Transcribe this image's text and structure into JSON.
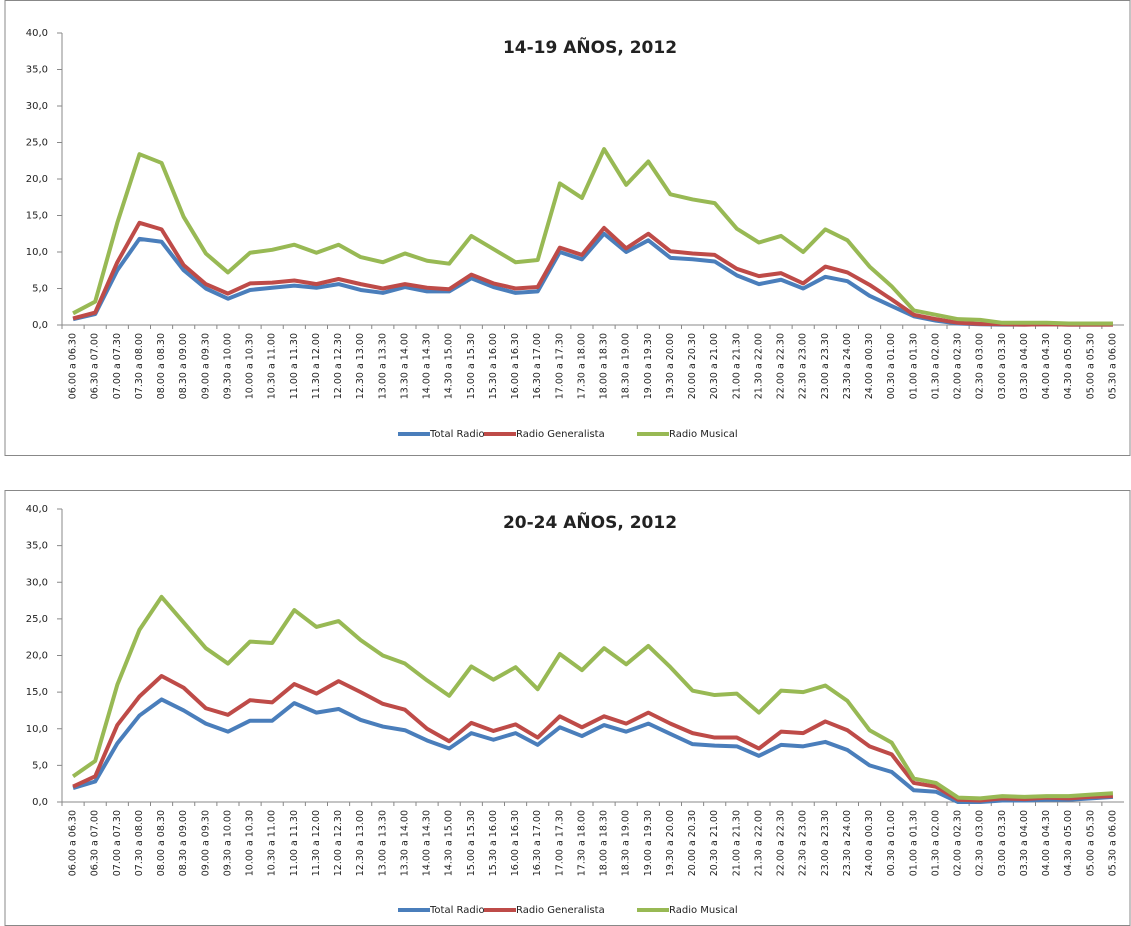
{
  "chart_data": [
    {
      "type": "line",
      "title": "14-19 AÑOS, 2012",
      "categories": [
        "06.00 a 06.30",
        "06.30 a 07.00",
        "07.00 a 07.30",
        "07.30 a 08.00",
        "08.00 a 08.30",
        "08.30 a 09.00",
        "09.00 a 09.30",
        "09.30 a 10.00",
        "10.00 a 10.30",
        "10.30 a 11.00",
        "11.00 a 11.30",
        "11.30 a 12.00",
        "12.00 a 12.30",
        "12.30 a 13.00",
        "13.00 a 13.30",
        "13.30 a 14.00",
        "14.00 a 14.30",
        "14.30 a 15.00",
        "15.00 a 15.30",
        "15.30 a 16.00",
        "16.00 a 16.30",
        "16.30 a 17.00",
        "17.00 a 17.30",
        "17.30 a 18.00",
        "18.00 a 18.30",
        "18.30 a 19.00",
        "19.00 a 19.30",
        "19.30 a 20.00",
        "20.00 a 20.30",
        "20.30 a 21.00",
        "21.00 a 21.30",
        "21.30 a 22.00",
        "22.00 a 22.30",
        "22.30 a 23.00",
        "23.00 a 23.30",
        "23.30 a 24.00",
        "24.00 a 00.30",
        "00.30 a 01.00",
        "01.00 a 01.30",
        "01.30 a 02.00",
        "02.00 a 02.30",
        "02.30 a 03.00",
        "03.00 a 03.30",
        "03.30 a 04.00",
        "04.00 a 04.30",
        "04.30 a 05.00",
        "05.00 a 05.30",
        "05.30 a 06.00"
      ],
      "series": [
        {
          "name": "Total Radio",
          "color": "#4a7ebb",
          "values": [
            0.8,
            1.5,
            7.5,
            11.8,
            11.4,
            7.5,
            5,
            3.6,
            4.8,
            5.1,
            5.4,
            5.1,
            5.6,
            4.8,
            4.4,
            5.2,
            4.6,
            4.6,
            6.4,
            5.2,
            4.4,
            4.6,
            10,
            9,
            12.5,
            10,
            11.6,
            9.2,
            9,
            8.7,
            6.8,
            5.6,
            6.2,
            5,
            6.6,
            6,
            4,
            2.6,
            1.2,
            0.6,
            0.2,
            0.1,
            0.05,
            0.05,
            0.1,
            0.05,
            0.05,
            0.05
          ]
        },
        {
          "name": "Radio Generalista",
          "color": "#be4b48",
          "values": [
            0.9,
            1.7,
            8.6,
            14,
            13.1,
            8.2,
            5.6,
            4.3,
            5.7,
            5.8,
            6.1,
            5.6,
            6.3,
            5.6,
            5,
            5.6,
            5.1,
            4.9,
            6.9,
            5.7,
            5,
            5.2,
            10.6,
            9.6,
            13.3,
            10.5,
            12.5,
            10.1,
            9.8,
            9.6,
            7.7,
            6.7,
            7.1,
            5.7,
            8,
            7.2,
            5.5,
            3.5,
            1.4,
            0.8,
            0.3,
            0.15,
            0.1,
            0.05,
            0.1,
            0.05,
            0.05,
            0.05
          ]
        },
        {
          "name": "Radio Musical",
          "color": "#98b954",
          "values": [
            1.6,
            3.2,
            14,
            23.4,
            22.2,
            14.8,
            9.8,
            7.2,
            9.9,
            10.3,
            11,
            9.9,
            11,
            9.3,
            8.6,
            9.8,
            8.8,
            8.4,
            12.2,
            10.4,
            8.6,
            8.9,
            19.4,
            17.4,
            24.1,
            19.2,
            22.4,
            17.9,
            17.2,
            16.7,
            13.2,
            11.3,
            12.2,
            10,
            13.1,
            11.6,
            8,
            5.3,
            2,
            1.4,
            0.8,
            0.7,
            0.3,
            0.3,
            0.3,
            0.2,
            0.2,
            0.2
          ]
        }
      ],
      "ylim": [
        0,
        40
      ],
      "yticks": [
        {
          "value": 0,
          "label": "0,0"
        },
        {
          "value": 5,
          "label": "5,0"
        },
        {
          "value": 10,
          "label": "10,0"
        },
        {
          "value": 15,
          "label": "15,0"
        },
        {
          "value": 20,
          "label": "20,0"
        },
        {
          "value": 25,
          "label": "25,0"
        },
        {
          "value": 30,
          "label": "30,0"
        },
        {
          "value": 35,
          "label": "35,0"
        },
        {
          "value": 40,
          "label": "40,0"
        }
      ],
      "legend": "bottom"
    },
    {
      "type": "line",
      "title": "20-24 AÑOS, 2012",
      "categories": [
        "06.00 a 06.30",
        "06.30 a 07.00",
        "07.00 a 07.30",
        "07.30 a 08.00",
        "08.00 a 08.30",
        "08.30 a 09.00",
        "09.00 a 09.30",
        "09.30 a 10.00",
        "10.00 a 10.30",
        "10.30 a 11.00",
        "11.00 a 11.30",
        "11.30 a 12.00",
        "12.00 a 12.30",
        "12.30 a 13.00",
        "13.00 a 13.30",
        "13.30 a 14.00",
        "14.00 a 14.30",
        "14.30 a 15.00",
        "15.00 a 15.30",
        "15.30 a 16.00",
        "16.00 a 16.30",
        "16.30 a 17.00",
        "17.00 a 17.30",
        "17.30 a 18.00",
        "18.00 a 18.30",
        "18.30 a 19.00",
        "19.00 a 19.30",
        "19.30 a 20.00",
        "20.00 a 20.30",
        "20.30 a 21.00",
        "21.00 a 21.30",
        "21.30 a 22.00",
        "22.00 a 22.30",
        "22.30 a 23.00",
        "23.00 a 23.30",
        "23.30 a 24.00",
        "24.00 a 00.30",
        "00.30 a 01.00",
        "01.00 a 01.30",
        "01.30 a 02.00",
        "02.00 a 02.30",
        "02.30 a 03.00",
        "03.00 a 03.30",
        "03.30 a 04.00",
        "04.00 a 04.30",
        "04.30 a 05.00",
        "05.00 a 05.30",
        "05.30 a 06.00"
      ],
      "series": [
        {
          "name": "Total Radio",
          "color": "#4a7ebb",
          "values": [
            1.9,
            2.8,
            8,
            11.8,
            14,
            12.5,
            10.7,
            9.6,
            11.1,
            11.1,
            13.5,
            12.2,
            12.7,
            11.2,
            10.3,
            9.8,
            8.4,
            7.3,
            9.4,
            8.5,
            9.4,
            7.8,
            10.2,
            9,
            10.5,
            9.6,
            10.7,
            9.3,
            7.9,
            7.7,
            7.6,
            6.3,
            7.8,
            7.6,
            8.2,
            7.1,
            5,
            4.1,
            1.6,
            1.4,
            0,
            0,
            0.2,
            0.2,
            0.3,
            0.3,
            0.5,
            0.7
          ]
        },
        {
          "name": "Radio Generalista",
          "color": "#be4b48",
          "values": [
            2.1,
            3.5,
            10.5,
            14.4,
            17.2,
            15.6,
            12.8,
            11.9,
            13.9,
            13.6,
            16.1,
            14.8,
            16.5,
            15,
            13.4,
            12.6,
            10,
            8.3,
            10.8,
            9.7,
            10.6,
            8.8,
            11.7,
            10.2,
            11.7,
            10.7,
            12.2,
            10.7,
            9.4,
            8.8,
            8.8,
            7.3,
            9.6,
            9.4,
            11,
            9.8,
            7.6,
            6.5,
            2.6,
            2.1,
            0.3,
            0.2,
            0.5,
            0.4,
            0.6,
            0.5,
            0.7,
            0.8
          ]
        },
        {
          "name": "Radio Musical",
          "color": "#98b954",
          "values": [
            3.5,
            5.6,
            16,
            23.5,
            28,
            24.5,
            21,
            18.9,
            21.9,
            21.7,
            26.2,
            23.9,
            24.7,
            22.1,
            20,
            18.9,
            16.6,
            14.5,
            18.5,
            16.7,
            18.4,
            15.4,
            20.2,
            18,
            21,
            18.8,
            21.3,
            18.4,
            15.2,
            14.6,
            14.8,
            12.2,
            15.2,
            15,
            15.9,
            13.8,
            9.8,
            8.1,
            3.2,
            2.6,
            0.6,
            0.5,
            0.8,
            0.7,
            0.8,
            0.8,
            1,
            1.2
          ]
        }
      ],
      "ylim": [
        0,
        40
      ],
      "yticks": [
        {
          "value": 0,
          "label": "0,0"
        },
        {
          "value": 5,
          "label": "5,0"
        },
        {
          "value": 10,
          "label": "10,0"
        },
        {
          "value": 15,
          "label": "15,0"
        },
        {
          "value": 20,
          "label": "20,0"
        },
        {
          "value": 25,
          "label": "25,0"
        },
        {
          "value": 30,
          "label": "30,0"
        },
        {
          "value": 35,
          "label": "35,0"
        },
        {
          "value": 40,
          "label": "40,0"
        }
      ],
      "legend": "bottom"
    }
  ]
}
